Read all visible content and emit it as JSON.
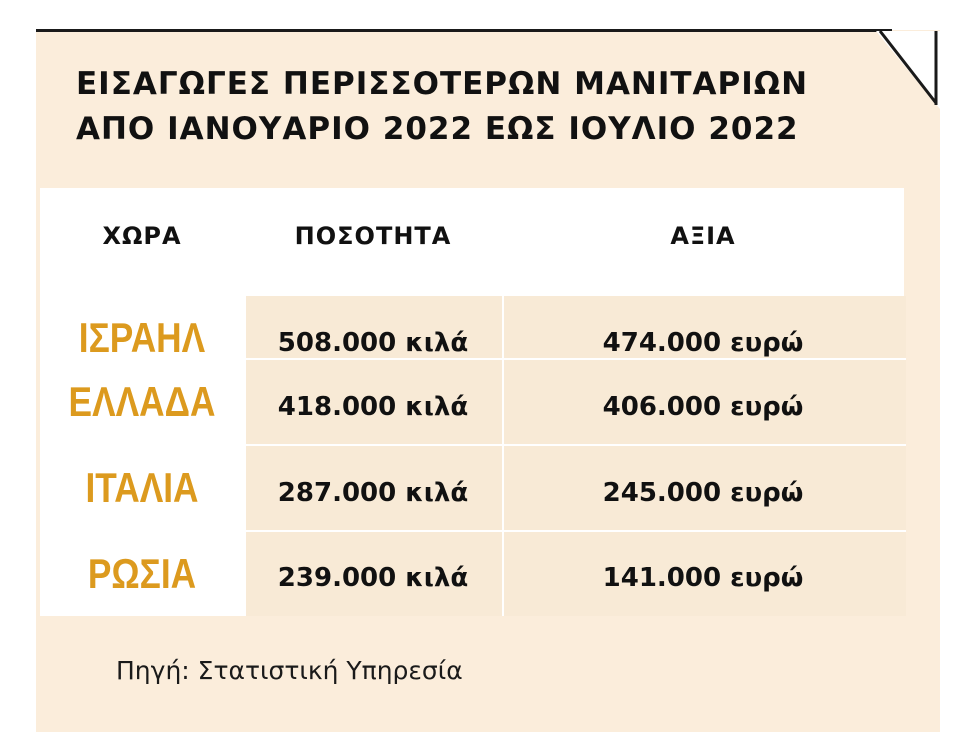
{
  "title": {
    "line1": "ΕΙΣΑΓΩΓΕΣ ΠΕΡΙΣΣΟΤΕΡΩΝ ΜΑΝΙΤΑΡΙΩΝ",
    "line2": "ΑΠΟ ΙΑΝΟΥΑΡΙΟ 2022 ΕΩΣ ΙΟΥΛΙΟ 2022"
  },
  "table": {
    "headers": [
      "ΧΩΡΑ",
      "ΠΟΣΟΤΗΤΑ",
      "ΑΞΙΑ"
    ],
    "rows": [
      {
        "country": "ΙΣΡΑΗΛ",
        "quantity": "508.000 κιλά",
        "value": "474.000 ευρώ"
      },
      {
        "country": "ΕΛΛΑΔΑ",
        "quantity": "418.000 κιλά",
        "value": "406.000 ευρώ"
      },
      {
        "country": "ΙΤΑΛΙΑ",
        "quantity": "287.000 κιλά",
        "value": "245.000 ευρώ"
      },
      {
        "country": "ΡΩΣΙΑ",
        "quantity": "239.000 κιλά",
        "value": "141.000 ευρώ"
      }
    ]
  },
  "source": "Πηγή: Στατιστική Υπηρεσία",
  "colors": {
    "background": "#fbeddb",
    "country": "#dc9a1e",
    "text": "#111111"
  }
}
